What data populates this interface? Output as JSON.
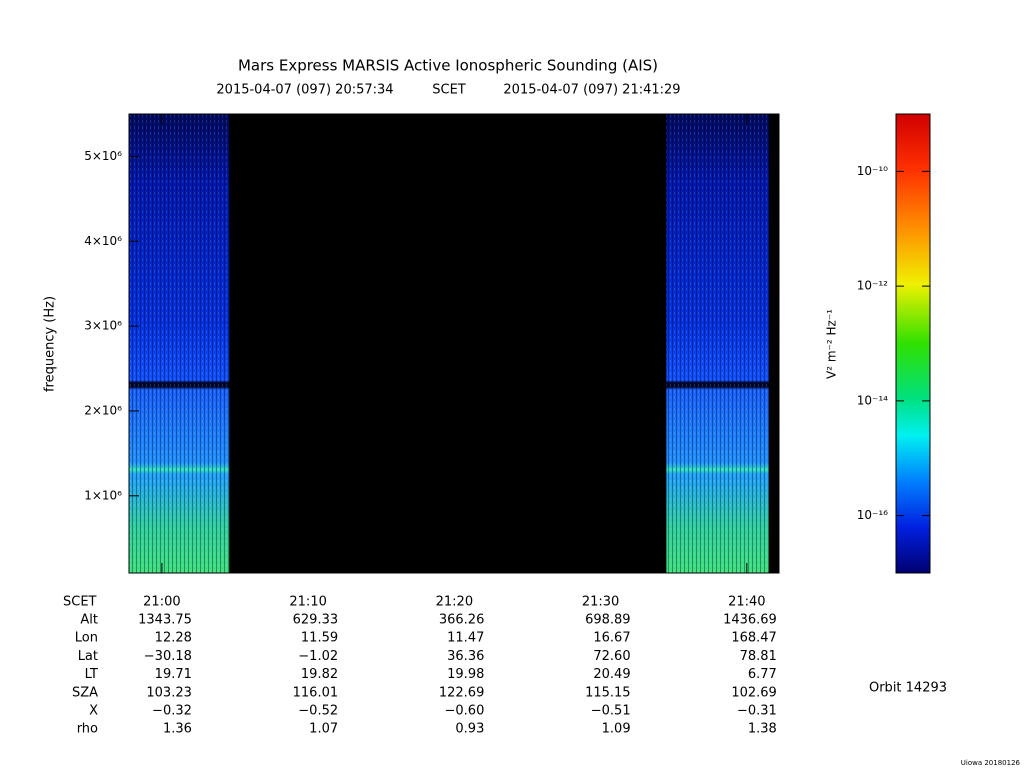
{
  "chart_data": {
    "type": "spectrogram",
    "title": "Mars Express MARSIS Active Ionospheric Sounding (AIS)",
    "start_time": "2015-04-07 (097) 20:57:34",
    "time_label": "SCET",
    "end_time": "2015-04-07 (097) 21:41:29",
    "ylabel": "frequency (Hz)",
    "ylim": [
      90000,
      5500000
    ],
    "yticks": [
      {
        "value": 1000000,
        "label": "1×10⁶"
      },
      {
        "value": 2000000,
        "label": "2×10⁶"
      },
      {
        "value": 3000000,
        "label": "3×10⁶"
      },
      {
        "value": 4000000,
        "label": "4×10⁶"
      },
      {
        "value": 5000000,
        "label": "5×10⁶"
      }
    ],
    "xlim": [
      1257.75,
      1302.2
    ],
    "xticks": [
      {
        "value": 1260,
        "label": "21:00"
      },
      {
        "value": 1270,
        "label": "21:10"
      },
      {
        "value": 1280,
        "label": "21:20"
      },
      {
        "value": 1290,
        "label": "21:30"
      },
      {
        "value": 1300,
        "label": "21:40"
      }
    ],
    "data_segments": [
      [
        1257.75,
        1264.6
      ],
      [
        1294.5,
        1301.5
      ]
    ],
    "colorbar": {
      "label": "V² m⁻² Hz⁻¹",
      "log_scale": true,
      "zlim": [
        1e-17,
        1e-09
      ],
      "ticks": [
        {
          "value": 1e-16,
          "label": "10⁻¹⁶"
        },
        {
          "value": 1e-14,
          "label": "10⁻¹⁴"
        },
        {
          "value": 1e-12,
          "label": "10⁻¹²"
        },
        {
          "value": 1e-10,
          "label": "10⁻¹⁰"
        }
      ]
    },
    "ephemeris_header": "SCET",
    "ephemeris": [
      {
        "label": "Alt",
        "values": [
          "1343.75",
          "629.33",
          "366.26",
          "698.89",
          "1436.69"
        ]
      },
      {
        "label": "Lon",
        "values": [
          "12.28",
          "11.59",
          "11.47",
          "16.67",
          "168.47"
        ]
      },
      {
        "label": "Lat",
        "values": [
          "−30.18",
          "−1.02",
          "36.36",
          "72.60",
          "78.81"
        ]
      },
      {
        "label": "LT",
        "values": [
          "19.71",
          "19.82",
          "19.98",
          "20.49",
          "6.77"
        ]
      },
      {
        "label": "SZA",
        "values": [
          "103.23",
          "116.01",
          "122.69",
          "115.15",
          "102.69"
        ]
      },
      {
        "label": "X",
        "values": [
          "−0.32",
          "−0.52",
          "−0.60",
          "−0.51",
          "−0.31"
        ]
      },
      {
        "label": "rho",
        "values": [
          "1.36",
          "1.07",
          "0.93",
          "1.09",
          "1.38"
        ]
      }
    ],
    "orbit": "Orbit 14293",
    "credit": "Uiowa 20180126"
  }
}
